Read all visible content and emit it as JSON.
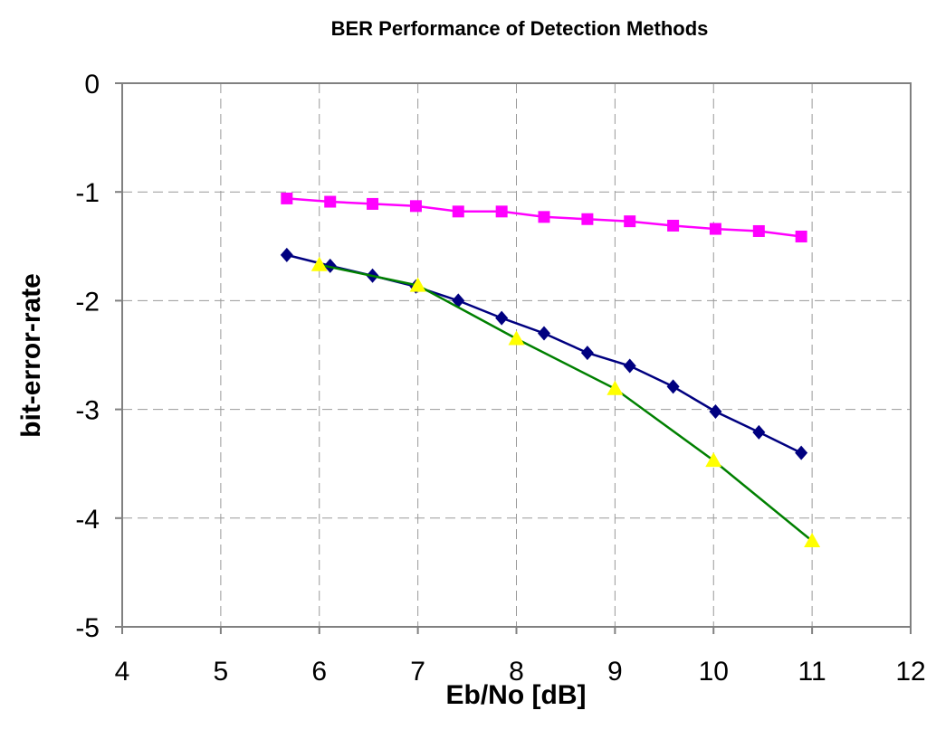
{
  "chart_data": {
    "type": "line",
    "title": "BER Performance of Detection Methods",
    "xlabel": "Eb/No [dB]",
    "ylabel": "bit-error-rate",
    "xlim": [
      4,
      12
    ],
    "ylim": [
      -5,
      0
    ],
    "xticks": [
      "4",
      "5",
      "6",
      "7",
      "8",
      "9",
      "10",
      "11",
      "12"
    ],
    "yticks": [
      "0",
      "-1",
      "-2",
      "-3",
      "-4",
      "-5"
    ],
    "grid": true,
    "legend": "none",
    "series": [
      {
        "color": "#ff00ff",
        "line_color": "#ff00ff",
        "marker": "square",
        "x": [
          5.67,
          6.11,
          6.54,
          6.98,
          7.41,
          7.85,
          8.28,
          8.72,
          9.15,
          9.59,
          10.02,
          10.46,
          10.89
        ],
        "y": [
          -1.06,
          -1.09,
          -1.11,
          -1.13,
          -1.18,
          -1.18,
          -1.23,
          -1.25,
          -1.27,
          -1.31,
          -1.34,
          -1.36,
          -1.41
        ]
      },
      {
        "color": "#000080",
        "line_color": "#000080",
        "marker": "diamond",
        "x": [
          5.67,
          6.11,
          6.54,
          6.98,
          7.41,
          7.85,
          8.28,
          8.72,
          9.15,
          9.59,
          10.02,
          10.46,
          10.89
        ],
        "y": [
          -1.58,
          -1.68,
          -1.77,
          -1.87,
          -2.0,
          -2.16,
          -2.3,
          -2.48,
          -2.6,
          -2.79,
          -3.02,
          -3.21,
          -3.4
        ]
      },
      {
        "color": "#ffff00",
        "line_color": "#008000",
        "marker": "triangle",
        "x": [
          6,
          7,
          8,
          9,
          10,
          11
        ],
        "y": [
          -1.67,
          -1.86,
          -2.35,
          -2.81,
          -3.47,
          -4.21
        ]
      }
    ]
  }
}
